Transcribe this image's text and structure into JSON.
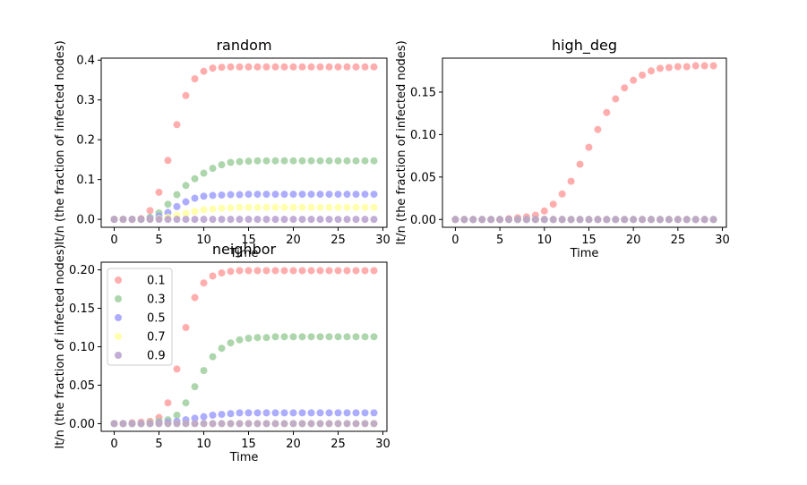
{
  "colors": {
    "0.1": "#ff9999",
    "0.3": "#99cc99",
    "0.5": "#9999ff",
    "0.7": "#ffff99",
    "0.9": "#b399cc"
  },
  "chart_data": [
    {
      "type": "scatter",
      "title": "random",
      "xlabel": "Time",
      "ylabel": "It/n (the fraction of infected nodes)",
      "xlim": [
        -1.45,
        30.45
      ],
      "ylim": [
        -0.02,
        0.405
      ],
      "xticks": [
        "0",
        "5",
        "10",
        "15",
        "20",
        "25",
        "30"
      ],
      "yticks": [
        "0.0",
        "0.1",
        "0.2",
        "0.3",
        "0.4"
      ],
      "x": [
        0,
        1,
        2,
        3,
        4,
        5,
        6,
        7,
        8,
        9,
        10,
        11,
        12,
        13,
        14,
        15,
        16,
        17,
        18,
        19,
        20,
        21,
        22,
        23,
        24,
        25,
        26,
        27,
        28,
        29
      ],
      "series": [
        {
          "name": "0.1",
          "values": [
            0,
            0,
            0,
            0.002,
            0.022,
            0.068,
            0.148,
            0.238,
            0.311,
            0.353,
            0.372,
            0.38,
            0.382,
            0.383,
            0.383,
            0.383,
            0.383,
            0.383,
            0.383,
            0.383,
            0.383,
            0.383,
            0.383,
            0.383,
            0.383,
            0.383,
            0.383,
            0.383,
            0.383,
            0.383
          ]
        },
        {
          "name": "0.3",
          "values": [
            0,
            0,
            0,
            0,
            0.005,
            0.016,
            0.038,
            0.062,
            0.085,
            0.102,
            0.116,
            0.128,
            0.137,
            0.143,
            0.145,
            0.146,
            0.147,
            0.147,
            0.147,
            0.147,
            0.147,
            0.147,
            0.147,
            0.147,
            0.147,
            0.147,
            0.147,
            0.147,
            0.147,
            0.147
          ]
        },
        {
          "name": "0.5",
          "values": [
            0,
            0,
            0,
            0,
            0.002,
            0.008,
            0.017,
            0.032,
            0.044,
            0.053,
            0.058,
            0.06,
            0.061,
            0.062,
            0.062,
            0.063,
            0.063,
            0.063,
            0.063,
            0.063,
            0.063,
            0.063,
            0.063,
            0.063,
            0.063,
            0.063,
            0.063,
            0.063,
            0.063,
            0.063
          ]
        },
        {
          "name": "0.7",
          "values": [
            0,
            0,
            0,
            0,
            0,
            0.002,
            0.005,
            0.01,
            0.015,
            0.02,
            0.024,
            0.026,
            0.028,
            0.029,
            0.03,
            0.03,
            0.03,
            0.03,
            0.03,
            0.03,
            0.03,
            0.03,
            0.03,
            0.03,
            0.03,
            0.03,
            0.03,
            0.03,
            0.03,
            0.03
          ]
        },
        {
          "name": "0.9",
          "values": [
            0,
            0,
            0,
            0,
            0,
            0,
            0,
            0,
            0,
            0,
            0,
            0,
            0,
            0,
            0,
            0,
            0,
            0,
            0,
            0,
            0,
            0,
            0,
            0,
            0,
            0,
            0,
            0,
            0,
            0
          ]
        }
      ]
    },
    {
      "type": "scatter",
      "title": "high_deg",
      "xlabel": "Time",
      "ylabel": "It/n (the fraction of infected nodes)",
      "xlim": [
        -1.45,
        30.45
      ],
      "ylim": [
        -0.0092,
        0.19
      ],
      "xticks": [
        "0",
        "5",
        "10",
        "15",
        "20",
        "25",
        "30"
      ],
      "yticks": [
        "0.00",
        "0.05",
        "0.10",
        "0.15"
      ],
      "x": [
        0,
        1,
        2,
        3,
        4,
        5,
        6,
        7,
        8,
        9,
        10,
        11,
        12,
        13,
        14,
        15,
        16,
        17,
        18,
        19,
        20,
        21,
        22,
        23,
        24,
        25,
        26,
        27,
        28,
        29
      ],
      "series": [
        {
          "name": "0.1",
          "values": [
            0,
            0,
            0,
            0,
            0,
            0,
            0.001,
            0.002,
            0.003,
            0.005,
            0.01,
            0.018,
            0.03,
            0.045,
            0.065,
            0.085,
            0.106,
            0.126,
            0.142,
            0.155,
            0.164,
            0.17,
            0.175,
            0.178,
            0.179,
            0.18,
            0.18,
            0.181,
            0.181,
            0.181
          ]
        },
        {
          "name": "0.3",
          "values": [
            0,
            0,
            0,
            0,
            0,
            0,
            0,
            0,
            0,
            0,
            0,
            0,
            0,
            0,
            0,
            0,
            0,
            0,
            0,
            0,
            0,
            0,
            0,
            0,
            0,
            0,
            0,
            0,
            0,
            0
          ]
        },
        {
          "name": "0.5",
          "values": [
            0,
            0,
            0,
            0,
            0,
            0,
            0,
            0,
            0,
            0,
            0,
            0,
            0,
            0,
            0,
            0,
            0,
            0,
            0,
            0,
            0,
            0,
            0,
            0,
            0,
            0,
            0,
            0,
            0,
            0
          ]
        },
        {
          "name": "0.7",
          "values": [
            0,
            0,
            0,
            0,
            0,
            0,
            0,
            0,
            0,
            0,
            0,
            0,
            0,
            0,
            0,
            0,
            0,
            0,
            0,
            0,
            0,
            0,
            0,
            0,
            0,
            0,
            0,
            0,
            0,
            0
          ]
        },
        {
          "name": "0.9",
          "values": [
            0,
            0,
            0,
            0,
            0,
            0,
            0,
            0,
            0,
            0,
            0,
            0,
            0,
            0,
            0,
            0,
            0,
            0,
            0,
            0,
            0,
            0,
            0,
            0,
            0,
            0,
            0,
            0,
            0,
            0
          ]
        }
      ]
    },
    {
      "type": "scatter",
      "title": "neighbor",
      "xlabel": "Time",
      "ylabel": "It/n (the fraction of infected nodes)",
      "xlim": [
        -1.45,
        30.45
      ],
      "ylim": [
        -0.01,
        0.21
      ],
      "xticks": [
        "0",
        "5",
        "10",
        "15",
        "20",
        "25",
        "30"
      ],
      "yticks": [
        "0.00",
        "0.05",
        "0.10",
        "0.15",
        "0.20"
      ],
      "legend": [
        "0.1",
        "0.3",
        "0.5",
        "0.7",
        "0.9"
      ],
      "x": [
        0,
        1,
        2,
        3,
        4,
        5,
        6,
        7,
        8,
        9,
        10,
        11,
        12,
        13,
        14,
        15,
        16,
        17,
        18,
        19,
        20,
        21,
        22,
        23,
        24,
        25,
        26,
        27,
        28,
        29
      ],
      "series": [
        {
          "name": "0.1",
          "values": [
            0,
            0,
            0.001,
            0.002,
            0.003,
            0.008,
            0.027,
            0.071,
            0.125,
            0.164,
            0.183,
            0.192,
            0.196,
            0.198,
            0.199,
            0.199,
            0.199,
            0.199,
            0.199,
            0.199,
            0.199,
            0.199,
            0.199,
            0.199,
            0.199,
            0.199,
            0.199,
            0.199,
            0.199,
            0.199
          ]
        },
        {
          "name": "0.3",
          "values": [
            0,
            0,
            0,
            0,
            0.001,
            0.003,
            0.005,
            0.011,
            0.027,
            0.048,
            0.069,
            0.087,
            0.098,
            0.105,
            0.109,
            0.111,
            0.112,
            0.112,
            0.113,
            0.113,
            0.113,
            0.113,
            0.113,
            0.113,
            0.113,
            0.113,
            0.113,
            0.113,
            0.113,
            0.113
          ]
        },
        {
          "name": "0.5",
          "values": [
            0,
            0,
            0,
            0,
            0,
            0.001,
            0.002,
            0.003,
            0.005,
            0.007,
            0.009,
            0.011,
            0.012,
            0.013,
            0.014,
            0.014,
            0.014,
            0.014,
            0.014,
            0.014,
            0.014,
            0.014,
            0.014,
            0.014,
            0.014,
            0.014,
            0.014,
            0.014,
            0.014,
            0.014
          ]
        },
        {
          "name": "0.7",
          "values": [
            0,
            0,
            0,
            0,
            0,
            0,
            0,
            0,
            0,
            0,
            0,
            0,
            0,
            0,
            0,
            0,
            0,
            0,
            0,
            0,
            0,
            0,
            0,
            0,
            0,
            0,
            0,
            0,
            0,
            0
          ]
        },
        {
          "name": "0.9",
          "values": [
            0,
            0,
            0,
            0,
            0,
            0,
            0,
            0,
            0,
            0,
            0,
            0,
            0,
            0,
            0,
            0,
            0,
            0,
            0,
            0,
            0,
            0,
            0,
            0,
            0,
            0,
            0,
            0,
            0,
            0
          ]
        }
      ]
    }
  ]
}
